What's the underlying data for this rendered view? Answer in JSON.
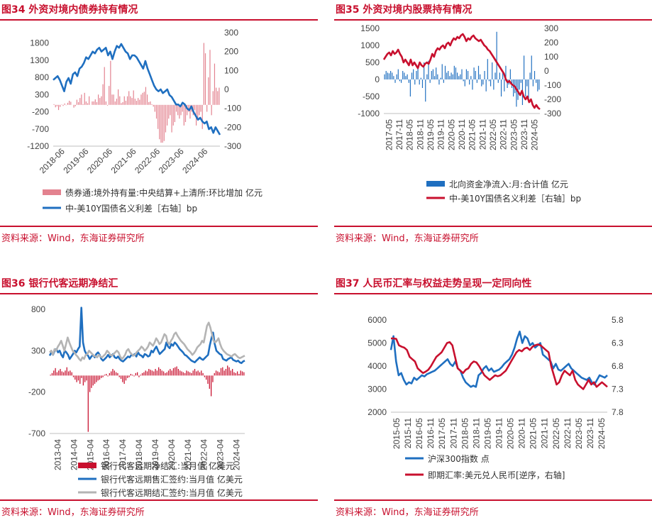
{
  "source": "资料来源：Wind，东海证券研究所",
  "colors": {
    "accent": "#c8102e",
    "blue": "#1f6fc0",
    "red": "#c8102e",
    "gray": "#b4b4b4",
    "pink": "#e3828f"
  },
  "chart_data": [
    {
      "type": "bar",
      "title": "图34 外资对境内债券持有情况",
      "series": [
        {
          "name": "债券通:境外持有量:中央结算+上清所:环比增加 亿元",
          "kind": "bar",
          "axis": "left",
          "values": [
            20,
            -70,
            -40,
            -150,
            -60,
            10,
            -30,
            40,
            -10,
            60,
            120,
            90,
            0,
            -80,
            -40,
            150,
            80,
            200,
            300,
            20,
            350,
            100,
            50,
            250,
            0,
            100,
            100,
            160,
            80,
            300,
            200,
            250,
            600,
            1100,
            100,
            -20,
            550,
            1280,
            300,
            300,
            100,
            180,
            450,
            250,
            50,
            80,
            250,
            120,
            250,
            400,
            250,
            200,
            420,
            180,
            120,
            200,
            150,
            300,
            350,
            380,
            520,
            300,
            80,
            100,
            20,
            -50,
            -200,
            -400,
            -700,
            -1000,
            -1100,
            -1100,
            -1050,
            -800,
            -600,
            -400,
            -300,
            -800,
            -600,
            -500,
            -200,
            -300,
            -400,
            -300,
            -200,
            -600,
            -500,
            -300,
            -200,
            -400,
            -200,
            -300,
            -150,
            -600,
            -400,
            -300,
            -200,
            -700,
            1800,
            1500,
            -200,
            800,
            1600,
            -300,
            400,
            1200,
            500,
            400,
            500
          ]
        },
        {
          "name": "中-美10Y国债名义利差［右轴］bp",
          "kind": "line",
          "axis": "right",
          "values": [
            50,
            60,
            70,
            50,
            20,
            -10,
            40,
            60,
            30,
            80,
            90,
            70,
            110,
            120,
            140,
            170,
            160,
            180,
            200,
            190,
            210,
            220,
            200,
            210,
            220,
            180,
            200,
            160,
            200,
            230,
            220,
            240,
            220,
            200,
            190,
            160,
            180,
            180,
            170,
            150,
            130,
            110,
            150,
            110,
            80,
            50,
            20,
            0,
            -10,
            0,
            -20,
            -10,
            0,
            -30,
            -40,
            -60,
            -80,
            -80,
            -90,
            -70,
            -80,
            -100,
            -110,
            -90,
            -120,
            -140,
            -160,
            -150,
            -170,
            -180,
            -170,
            -210,
            -200,
            -230,
            -200,
            -220,
            -240
          ]
        }
      ],
      "x_ticks": [
        "2018-06",
        "2019-06",
        "2020-06",
        "2021-06",
        "2022-06",
        "2023-06",
        "2024-06"
      ],
      "ylim": [
        -1200,
        2100
      ],
      "y_ticks": [
        -1200,
        -700,
        -200,
        300,
        800,
        1300,
        1800
      ],
      "y2lim": [
        -300,
        300
      ],
      "y2_ticks": [
        -300,
        -200,
        -100,
        0,
        100,
        200,
        300
      ]
    },
    {
      "type": "bar",
      "title": "图35 外资对境内股票持有情况",
      "series": [
        {
          "name": "北向资金净流入:月:合计值 亿元",
          "kind": "bar",
          "axis": "left",
          "values": [
            150,
            250,
            200,
            180,
            250,
            200,
            100,
            -100,
            150,
            300,
            -50,
            -100,
            250,
            200,
            100,
            150,
            -100,
            -500,
            200,
            300,
            -150,
            250,
            400,
            -150,
            50,
            -250,
            500,
            -650,
            150,
            550,
            -100,
            250,
            300,
            100,
            350,
            150,
            -150,
            50,
            450,
            -100,
            400,
            200,
            250,
            100,
            200,
            150,
            400,
            350,
            200,
            100,
            150,
            300,
            -50,
            -200,
            300,
            250,
            -150,
            100,
            -300,
            350,
            250,
            -100,
            400,
            150,
            -200,
            -150,
            250,
            -350,
            600,
            -50,
            -200,
            500,
            -300,
            200,
            1400,
            -100,
            200,
            -500,
            200,
            -350,
            400,
            -250,
            -150,
            300,
            -250,
            -500,
            -400,
            -800,
            -600,
            -300,
            -100,
            -750,
            700,
            -500,
            -200,
            -550,
            200,
            700,
            -200,
            250,
            -100,
            -350,
            -300
          ]
        },
        {
          "name": "中-美10Y国债名义利差［右轴］bp",
          "kind": "line",
          "axis": "right",
          "values": [
            80,
            100,
            120,
            130,
            110,
            140,
            120,
            130,
            150,
            120,
            100,
            60,
            80,
            60,
            40,
            80,
            40,
            60,
            40,
            20,
            60,
            40,
            30,
            50,
            60,
            50,
            80,
            120,
            100,
            140,
            160,
            150,
            170,
            180,
            160,
            190,
            200,
            180,
            210,
            230,
            220,
            240,
            230,
            250,
            260,
            240,
            210,
            230,
            220,
            240,
            250,
            230,
            220,
            210,
            220,
            200,
            180,
            170,
            150,
            140,
            120,
            100,
            80,
            60,
            40,
            20,
            0,
            -20,
            -60,
            -80,
            -70,
            -90,
            -100,
            -110,
            -130,
            -150,
            -170,
            -140,
            -180,
            -200,
            -180,
            -220,
            -200,
            -240,
            -260,
            -240,
            -260,
            -270
          ]
        }
      ],
      "x_ticks": [
        "2017-05",
        "2017-11",
        "2018-05",
        "2018-11",
        "2019-05",
        "2019-11",
        "2020-05",
        "2020-11",
        "2021-05",
        "2021-11",
        "2022-05",
        "2022-11",
        "2023-05",
        "2023-11",
        "2024-05"
      ],
      "ylim": [
        -1000,
        1500
      ],
      "y_ticks": [
        -1000,
        -500,
        0,
        500,
        1000,
        1500
      ],
      "y2lim": [
        -300,
        300
      ],
      "y2_ticks": [
        -300,
        -200,
        -100,
        0,
        100,
        200,
        300
      ]
    },
    {
      "type": "bar",
      "title": "图36 银行代客远期净结汇",
      "series": [
        {
          "name": "银行代客远期净结汇:当月值 亿美元",
          "kind": "bar",
          "axis": "left",
          "values": [
            10,
            30,
            60,
            90,
            40,
            60,
            80,
            50,
            40,
            60,
            100,
            50,
            60,
            40,
            -20,
            -50,
            -80,
            -60,
            -100,
            -30,
            -120,
            -80,
            -60,
            -680,
            -200,
            -150,
            -120,
            -100,
            -80,
            -60,
            -50,
            -30,
            -20,
            10,
            20,
            -10,
            30,
            50,
            80,
            60,
            40,
            30,
            -20,
            -40,
            -80,
            -100,
            -60,
            -30,
            -20,
            20,
            10,
            -10,
            30,
            40,
            -20,
            10,
            30,
            40,
            60,
            50,
            80,
            70,
            60,
            50,
            80,
            60,
            100,
            80,
            60,
            50,
            30,
            40,
            60,
            80,
            60,
            90,
            100,
            110,
            80,
            60,
            50,
            40,
            30,
            60,
            50,
            40,
            30,
            60,
            80,
            50,
            60,
            40,
            60,
            30,
            -20,
            -50,
            -100,
            -160,
            -250,
            -80,
            30,
            60,
            50,
            40,
            90,
            100,
            60,
            80,
            120,
            100,
            60,
            80,
            40,
            30,
            50,
            20,
            60,
            50,
            40
          ]
        },
        {
          "name": "银行代客远期售汇签约:当月值 亿美元",
          "kind": "line",
          "axis": "left",
          "values": [
            240,
            280,
            250,
            300,
            320,
            280,
            300,
            250,
            220,
            300,
            280,
            250,
            200,
            230,
            260,
            300,
            280,
            320,
            350,
            820,
            400,
            300,
            260,
            240,
            200,
            230,
            250,
            220,
            260,
            280,
            250,
            200,
            180,
            200,
            220,
            250,
            220,
            240,
            260,
            220,
            210,
            230,
            200,
            180,
            170,
            190,
            210,
            230,
            220,
            250,
            240,
            260,
            230,
            280,
            250,
            240,
            220,
            260,
            250,
            230,
            240,
            300,
            280,
            320,
            350,
            300,
            260,
            280,
            300,
            320,
            400,
            350,
            330,
            380,
            360,
            400,
            380,
            350,
            320,
            300,
            280,
            250,
            240,
            220,
            200,
            180,
            170,
            160,
            180,
            200,
            220,
            200,
            190,
            210,
            230,
            250,
            360,
            450,
            520,
            380,
            300,
            280,
            260,
            250,
            200,
            190,
            180,
            200,
            210,
            220,
            190,
            180,
            170,
            180,
            160,
            150,
            170,
            180
          ]
        },
        {
          "name": "银行代客远期结汇签约:当月值 亿美元",
          "kind": "line",
          "axis": "left",
          "values": [
            280,
            300,
            250,
            320,
            300,
            350,
            380,
            420,
            360,
            300,
            380,
            460,
            400,
            350,
            300,
            280,
            250,
            230,
            200,
            180,
            220,
            200,
            250,
            260,
            300,
            280,
            260,
            240,
            230,
            220,
            250,
            230,
            220,
            240,
            260,
            300,
            280,
            250,
            240,
            260,
            280,
            300,
            280,
            230,
            200,
            220,
            250,
            300,
            320,
            280,
            260,
            240,
            250,
            280,
            300,
            320,
            350,
            330,
            300,
            320,
            350,
            400,
            380,
            360,
            400,
            450,
            420,
            380,
            400,
            450,
            500,
            480,
            400,
            380,
            420,
            450,
            500,
            520,
            480,
            450,
            420,
            400,
            380,
            350,
            320,
            300,
            280,
            250,
            270,
            300,
            340,
            360,
            380,
            420,
            400,
            500,
            600,
            640,
            580,
            500,
            420,
            400,
            420,
            450,
            380,
            330,
            300,
            280,
            260,
            250,
            240,
            230,
            250,
            260,
            240,
            220,
            210,
            220,
            230,
            240
          ]
        }
      ],
      "x_ticks": [
        "2013-04",
        "2014-04",
        "2015-04",
        "2016-04",
        "2017-04",
        "2018-04",
        "2019-04",
        "2020-04",
        "2021-04",
        "2022-04",
        "2023-04",
        "2024-04"
      ],
      "ylim": [
        -700,
        800
      ],
      "y_ticks": [
        -700,
        -200,
        300,
        800
      ]
    },
    {
      "type": "line",
      "title": "图37 人民币汇率与权益走势呈现一定同向性",
      "series": [
        {
          "name": "沪深300指数 点",
          "kind": "line",
          "axis": "left",
          "values": [
            4700,
            5300,
            4200,
            3600,
            3700,
            3400,
            3200,
            3300,
            3250,
            3500,
            3400,
            3500,
            3600,
            3550,
            3650,
            3700,
            3750,
            3800,
            3900,
            4000,
            4100,
            4200,
            4300,
            4100,
            4000,
            4200,
            3900,
            3800,
            3500,
            3300,
            3200,
            3100,
            3150,
            3100,
            3600,
            3700,
            3900,
            4000,
            3800,
            3900,
            3750,
            3800,
            3850,
            3950,
            4100,
            4200,
            4300,
            4500,
            4800,
            5200,
            5500,
            5000,
            5300,
            5200,
            4900,
            5000,
            4800,
            4900,
            5000,
            4500,
            4400,
            4300,
            4200,
            3900,
            4100,
            3850,
            3800,
            3900,
            4000,
            4100,
            3900,
            3800,
            3700,
            3600,
            3500,
            3450,
            3400,
            3500,
            3300,
            3200,
            3400,
            3600,
            3550,
            3500,
            3600
          ]
        },
        {
          "name": "即期汇率:美元兑人民币[逆序，右轴]",
          "kind": "line",
          "axis": "right",
          "values": [
            6.2,
            6.2,
            6.21,
            6.35,
            6.38,
            6.4,
            6.45,
            6.6,
            6.65,
            6.7,
            6.85,
            6.9,
            6.95,
            6.92,
            6.88,
            6.8,
            6.7,
            6.6,
            6.55,
            6.5,
            6.4,
            6.3,
            6.28,
            6.35,
            6.6,
            6.85,
            6.9,
            6.95,
            6.88,
            6.85,
            6.75,
            6.7,
            6.72,
            6.8,
            6.9,
            7.0,
            7.05,
            7.1,
            7.05,
            7.0,
            7.02,
            7.0,
            6.95,
            6.9,
            6.8,
            6.7,
            6.6,
            6.5,
            6.45,
            6.48,
            6.42,
            6.4,
            6.45,
            6.38,
            6.35,
            6.33,
            6.35,
            6.4,
            6.45,
            6.5,
            6.8,
            7.0,
            7.2,
            7.15,
            7.0,
            6.9,
            6.95,
            7.0,
            6.9,
            7.1,
            7.2,
            7.25,
            7.3,
            7.2,
            7.1,
            7.2,
            7.15,
            7.25,
            7.2,
            7.15,
            7.2,
            7.25
          ]
        }
      ],
      "x_ticks": [
        "2015-05",
        "2015-11",
        "2016-05",
        "2016-11",
        "2017-05",
        "2017-11",
        "2018-05",
        "2018-11",
        "2019-05",
        "2019-11",
        "2020-05",
        "2020-11",
        "2021-05",
        "2021-11",
        "2022-05",
        "2022-11",
        "2023-05",
        "2023-11",
        "2024-05"
      ],
      "ylim": [
        2000,
        6000
      ],
      "y_ticks": [
        2000,
        3000,
        4000,
        5000,
        6000
      ],
      "y2lim": [
        5.8,
        7.8
      ],
      "y2_ticks": [
        5.8,
        6.3,
        6.8,
        7.3,
        7.8
      ],
      "y2_reversed": true
    }
  ]
}
